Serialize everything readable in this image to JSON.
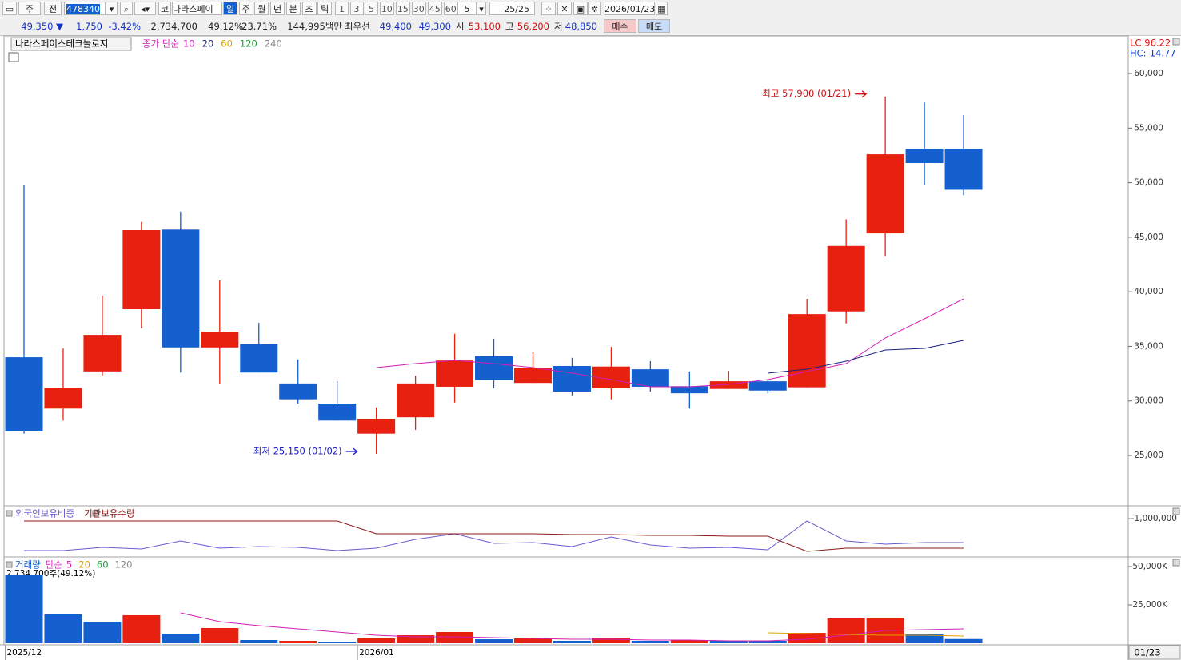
{
  "toolbar": {
    "view": "주",
    "mode": "전",
    "code": "478340",
    "market": "코",
    "name": "나라스페이",
    "period_buttons": [
      "일",
      "주",
      "월",
      "년",
      "분",
      "초",
      "틱"
    ],
    "minute_buttons": [
      "1",
      "3",
      "5",
      "10",
      "15",
      "30",
      "45",
      "60"
    ],
    "count": "5",
    "range": "25/25",
    "date": "2026/01/23"
  },
  "quote": {
    "price": "49,350 ▼",
    "change": "1,750",
    "rate": "-3.42%",
    "volume": "2,734,700",
    "volume_rate": "49.12%",
    "turnover": "23.71%",
    "amount": "144,995백만",
    "best_label": "최우선",
    "ask": "49,400",
    "bid": "49,300",
    "open_label": "시",
    "open": "53,100",
    "high_label": "고",
    "high": "56,200",
    "low_label": "저",
    "low": "48,850",
    "buy": "매수",
    "sell": "매도"
  },
  "chart_data": [
    {
      "type": "candlestick",
      "title": "나라스페이스테크놀로지",
      "ma_prefix": "종가 단순",
      "categories": [
        "2025/12",
        null,
        null,
        null,
        null,
        null,
        null,
        null,
        null,
        "2026/01",
        null,
        null,
        null,
        null,
        null,
        null,
        null,
        null,
        null,
        null,
        null,
        null,
        null,
        null,
        null
      ],
      "open": [
        34000,
        29300,
        32700,
        38400,
        45700,
        34900,
        35200,
        31600,
        29750,
        27000,
        28500,
        31300,
        34100,
        31650,
        33200,
        31150,
        32900,
        31350,
        31100,
        31800,
        31250,
        38200,
        45350,
        53100,
        53100
      ],
      "high": [
        49750,
        34800,
        39650,
        46400,
        47350,
        41050,
        37150,
        33800,
        31800,
        29400,
        32300,
        36150,
        35700,
        34450,
        33950,
        34950,
        33650,
        32700,
        32750,
        31900,
        39350,
        46650,
        57900,
        57350,
        56200
      ],
      "low": [
        27000,
        28200,
        32300,
        36650,
        32600,
        31600,
        32600,
        29750,
        28200,
        25150,
        27350,
        29850,
        31150,
        31650,
        30500,
        30150,
        30850,
        29300,
        31100,
        30700,
        31250,
        37100,
        43250,
        49800,
        48850
      ],
      "close": [
        27200,
        31200,
        36050,
        45650,
        34900,
        36350,
        32600,
        30150,
        28200,
        28350,
        31600,
        33700,
        31900,
        33050,
        30850,
        33150,
        31300,
        30700,
        31800,
        30950,
        37950,
        44200,
        52600,
        51800,
        49350
      ],
      "up_color": "#e8200f",
      "down_color": "#1560cf",
      "series": [
        {
          "name": "10",
          "color": "#d21fb4",
          "values": [
            null,
            null,
            null,
            null,
            null,
            null,
            null,
            null,
            null,
            33055,
            33421,
            33714,
            33421,
            33055,
            32543,
            31957,
            31298,
            31298,
            31518,
            31957,
            32689,
            33421,
            35764,
            37521,
            39352
          ]
        },
        {
          "name": "20",
          "color": "#1a237e",
          "values": [
            null,
            null,
            null,
            null,
            null,
            null,
            null,
            null,
            null,
            null,
            null,
            null,
            null,
            null,
            null,
            null,
            null,
            null,
            null,
            32543,
            32909,
            33640,
            34665,
            34812,
            35544
          ]
        },
        {
          "name": "60",
          "color": "#e0a000",
          "values": [
            null,
            null,
            null,
            null,
            null,
            null,
            null,
            null,
            null,
            null,
            null,
            null,
            null,
            null,
            null,
            null,
            null,
            null,
            null,
            null,
            null,
            null,
            null,
            null,
            null
          ]
        },
        {
          "name": "120",
          "color": "#1f9a3a",
          "values": [
            null,
            null,
            null,
            null,
            null,
            null,
            null,
            null,
            null,
            null,
            null,
            null,
            null,
            null,
            null,
            null,
            null,
            null,
            null,
            null,
            null,
            null,
            null,
            null,
            null
          ]
        },
        {
          "name": "240",
          "color": "#888888",
          "values": [
            null,
            null,
            null,
            null,
            null,
            null,
            null,
            null,
            null,
            null,
            null,
            null,
            null,
            null,
            null,
            null,
            null,
            null,
            null,
            null,
            null,
            null,
            null,
            null,
            null
          ]
        }
      ],
      "ylim": [
        20460,
        63370
      ],
      "yticks": [
        {
          "value": 60000,
          "label": "60,000"
        },
        {
          "value": 55000,
          "label": "55,000"
        },
        {
          "value": 50000,
          "label": "50,000"
        },
        {
          "value": 45000,
          "label": "45,000"
        },
        {
          "value": 40000,
          "label": "40,000"
        },
        {
          "value": 35000,
          "label": "35,000"
        },
        {
          "value": 30000,
          "label": "30,000"
        },
        {
          "value": 25000,
          "label": "25,000"
        }
      ],
      "annotations": [
        {
          "text": "최저 25,150 (01/02)",
          "index": 9,
          "value": 25150,
          "color": "#1a1acc"
        },
        {
          "text": "최고 57,900 (01/21)",
          "index": 22,
          "value": 57900,
          "color": "#d01010"
        }
      ],
      "indicators": [
        {
          "text": "LC:96.22",
          "color": "#e01010"
        },
        {
          "text": "HC:-14.77",
          "color": "#1040d0"
        }
      ],
      "cursor_date": "01/23"
    },
    {
      "type": "line",
      "series": [
        {
          "name": "외국인보유비중",
          "color": "#6a5acd",
          "values": [
            -1711000,
            -1711000,
            -1639000,
            -1675000,
            -1496000,
            -1657000,
            -1621000,
            -1639000,
            -1711000,
            -1657000,
            -1461000,
            -1336000,
            -1550000,
            -1532000,
            -1621000,
            -1407000,
            -1586000,
            -1657000,
            -1639000,
            -1693000,
            -1050000,
            -1496000,
            -1568000,
            -1532000,
            -1532000
          ]
        },
        {
          "name": "기관보유수량",
          "color": "#8b1a1a",
          "values": [
            -1050000,
            -1050000,
            -1050000,
            -1050000,
            -1050000,
            -1050000,
            -1050000,
            -1050000,
            -1050000,
            -1335000,
            -1335000,
            -1335000,
            -1335000,
            -1335000,
            -1353000,
            -1353000,
            -1371000,
            -1371000,
            -1389000,
            -1389000,
            -1729000,
            -1657000,
            -1657000,
            -1657000,
            -1657000
          ]
        }
      ],
      "ylim": [
        -1800000,
        -800000
      ],
      "yticks": [
        {
          "value": -1000000,
          "label": "-1,000,000"
        }
      ]
    },
    {
      "type": "bar",
      "bar_name": "거래량",
      "ma_prefix": "단순",
      "caption": "2,734,700주(49.12%)",
      "values": [
        44270,
        18750,
        14060,
        18230,
        6250,
        9900,
        2080,
        1560,
        1040,
        3125,
        5200,
        7290,
        2600,
        3125,
        1560,
        3650,
        1560,
        2080,
        1560,
        1560,
        6770,
        16150,
        16670,
        5730,
        2734.7
      ],
      "colors": [
        "#1560cf",
        "#1560cf",
        "#1560cf",
        "#e8200f",
        "#1560cf",
        "#e8200f",
        "#1560cf",
        "#e8200f",
        "#1560cf",
        "#e8200f",
        "#e8200f",
        "#e8200f",
        "#1560cf",
        "#e8200f",
        "#1560cf",
        "#e8200f",
        "#1560cf",
        "#e8200f",
        "#1560cf",
        "#1560cf",
        "#e8200f",
        "#e8200f",
        "#e8200f",
        "#1560cf",
        "#1560cf"
      ],
      "bar_color": "#1560cf",
      "series": [
        {
          "name": "5",
          "color": "#d21fb4",
          "values": [
            null,
            null,
            null,
            null,
            19790,
            14060,
            11460,
            9375,
            7290,
            5200,
            4170,
            4170,
            3650,
            3125,
            2600,
            2600,
            2080,
            2080,
            1560,
            1560,
            2600,
            5200,
            8330,
            8850,
            9375
          ]
        },
        {
          "name": "20",
          "color": "#e0a000",
          "values": [
            null,
            null,
            null,
            null,
            null,
            null,
            null,
            null,
            null,
            null,
            null,
            null,
            null,
            null,
            null,
            null,
            null,
            null,
            null,
            6770,
            6250,
            5730,
            5200,
            5200,
            4690
          ]
        },
        {
          "name": "60",
          "color": "#1f9a3a",
          "values": [
            null,
            null,
            null,
            null,
            null,
            null,
            null,
            null,
            null,
            null,
            null,
            null,
            null,
            null,
            null,
            null,
            null,
            null,
            null,
            null,
            null,
            null,
            null,
            null,
            null
          ]
        },
        {
          "name": "120",
          "color": "#888888",
          "values": [
            null,
            null,
            null,
            null,
            null,
            null,
            null,
            null,
            null,
            null,
            null,
            null,
            null,
            null,
            null,
            null,
            null,
            null,
            null,
            null,
            null,
            null,
            null,
            null,
            null
          ]
        }
      ],
      "ylim": [
        0,
        55200
      ],
      "yticks": [
        {
          "value": 50000,
          "label": "50,000K"
        },
        {
          "value": 25000,
          "label": "25,000K"
        }
      ]
    }
  ]
}
